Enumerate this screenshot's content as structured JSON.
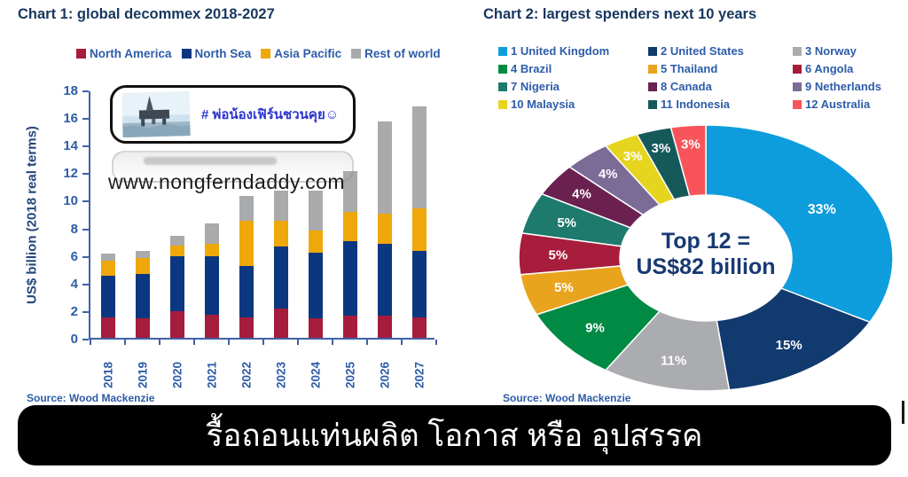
{
  "chart1": {
    "title": "Chart 1: global decommex 2018-2027",
    "ylabel": "US$ billion (2018 real terms)",
    "source": "Source: Wood Mackenzie"
  },
  "chart2": {
    "title": "Chart 2: largest spenders next 10 years",
    "center_line1": "Top 12 =",
    "center_line2": "US$82 billion",
    "source": "Source: Wood Mackenzie"
  },
  "badge": {
    "text": "# พ่อน้องเฟิร์นชวนคุย☺",
    "photo": "offshore-oil-platform-photo"
  },
  "watermark": {
    "text": "www.nongferndaddy.com"
  },
  "banner": {
    "text": "รื้อถอนแท่นผลิต โอกาส หรือ อุปสรรค"
  },
  "colors": {
    "title_text": "#17365D",
    "axis_text": "#2D5CA8",
    "axis_line": "#3F62A8",
    "center_text": "#183A73",
    "banner_bg": "#000000",
    "banner_text": "#ffffff"
  },
  "chart_data": [
    {
      "id": "global-decommex-stacked-bar",
      "type": "bar",
      "stacked": true,
      "title": "Chart 1: global decommex 2018-2027",
      "xlabel": "",
      "ylabel": "US$ billion (2018 real terms)",
      "ylim": [
        0,
        18
      ],
      "ytick_step": 2,
      "grid": false,
      "legend_position": "top",
      "categories": [
        "2018",
        "2019",
        "2020",
        "2021",
        "2022",
        "2023",
        "2024",
        "2025",
        "2026",
        "2027"
      ],
      "series": [
        {
          "name": "North America",
          "color": "#A61C3C",
          "values": [
            1.5,
            1.4,
            1.9,
            1.7,
            1.5,
            2.1,
            1.4,
            1.6,
            1.6,
            1.5
          ]
        },
        {
          "name": "North Sea",
          "color": "#0A3780",
          "values": [
            3.0,
            3.2,
            4.0,
            4.2,
            3.7,
            4.5,
            4.8,
            5.4,
            5.2,
            4.8
          ]
        },
        {
          "name": "Asia Pacific",
          "color": "#EEA80A",
          "values": [
            1.1,
            1.2,
            0.8,
            0.9,
            3.3,
            1.9,
            1.6,
            2.1,
            2.2,
            3.1
          ]
        },
        {
          "name": "Rest of world",
          "color": "#A8AAAC",
          "values": [
            0.5,
            0.5,
            0.7,
            1.5,
            1.8,
            2.2,
            2.9,
            3.0,
            6.7,
            7.4
          ]
        }
      ],
      "totals": [
        6.1,
        6.3,
        7.4,
        8.3,
        10.3,
        10.7,
        10.7,
        12.1,
        15.7,
        16.8
      ]
    },
    {
      "id": "largest-spenders-donut",
      "type": "pie",
      "subtype": "donut",
      "title": "Chart 2: largest spenders next 10 years",
      "center_label": "Top 12 = US$82 billion",
      "start_angle_deg": 0,
      "direction": "clockwise",
      "slices": [
        {
          "rank": 1,
          "name": "United Kingdom",
          "pct": 33,
          "color": "#0D9DDD"
        },
        {
          "rank": 2,
          "name": "United States",
          "pct": 15,
          "color": "#113A6E"
        },
        {
          "rank": 3,
          "name": "Norway",
          "pct": 11,
          "color": "#ABACAF"
        },
        {
          "rank": 4,
          "name": "Brazil",
          "pct": 9,
          "color": "#008A44"
        },
        {
          "rank": 5,
          "name": "Thailand",
          "pct": 5,
          "color": "#E9A41E"
        },
        {
          "rank": 6,
          "name": "Angola",
          "pct": 5,
          "color": "#A81C3C"
        },
        {
          "rank": 7,
          "name": "Nigeria",
          "pct": 5,
          "color": "#1E7A6C"
        },
        {
          "rank": 8,
          "name": "Canada",
          "pct": 4,
          "color": "#6B2150"
        },
        {
          "rank": 9,
          "name": "Netherlands",
          "pct": 4,
          "color": "#7A6C96"
        },
        {
          "rank": 10,
          "name": "Malaysia",
          "pct": 3,
          "color": "#E6D51F"
        },
        {
          "rank": 11,
          "name": "Indonesia",
          "pct": 3,
          "color": "#16595B"
        },
        {
          "rank": 12,
          "name": "Australia",
          "pct": 3,
          "color": "#F85459"
        }
      ]
    }
  ]
}
